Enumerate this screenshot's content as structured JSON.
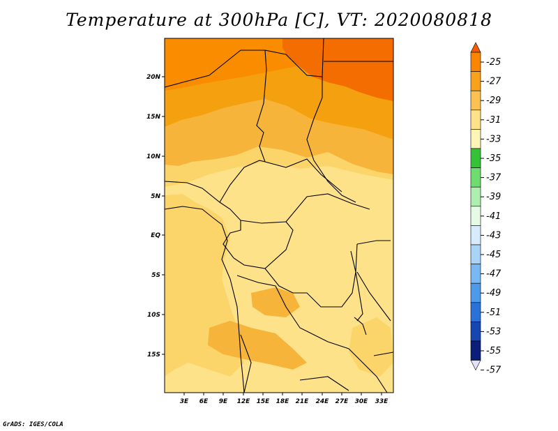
{
  "title": "Temperature at 300hPa [C], VT: 2020080818",
  "footer": "GrADS: IGES/COLA",
  "map": {
    "lat_labels": [
      "20N",
      "15N",
      "10N",
      "5N",
      "EQ",
      "5S",
      "10S",
      "15S"
    ],
    "lon_labels": [
      "3E",
      "6E",
      "9E",
      "12E",
      "15E",
      "18E",
      "21E",
      "24E",
      "27E",
      "30E",
      "33E"
    ],
    "field_colors": {
      "warmest": "#f46d00",
      "band_27_25": "#fa8c00",
      "band_29_27": "#f5a10f",
      "band_31_29": "#f7b43a",
      "band_33_31": "#fcd56a",
      "band_35_33": "#fde28a",
      "border": "#000000"
    }
  },
  "colorbar": {
    "labels": [
      "-25",
      "-27",
      "-29",
      "-31",
      "-33",
      "-35",
      "-37",
      "-39",
      "-41",
      "-43",
      "-45",
      "-47",
      "-49",
      "-51",
      "-53",
      "-55",
      "-57"
    ],
    "colors": [
      "#f75a00",
      "#fa8500",
      "#f7a21a",
      "#fac252",
      "#fde28a",
      "#fdf4b8",
      "#36c236",
      "#6fdc6f",
      "#aeeeae",
      "#e6fbe6",
      "#d6ecfc",
      "#a9d4f8",
      "#79b8f2",
      "#4d99ea",
      "#2a72d8",
      "#1646b0",
      "#0a1e7a",
      "#e1e1fa"
    ]
  }
}
